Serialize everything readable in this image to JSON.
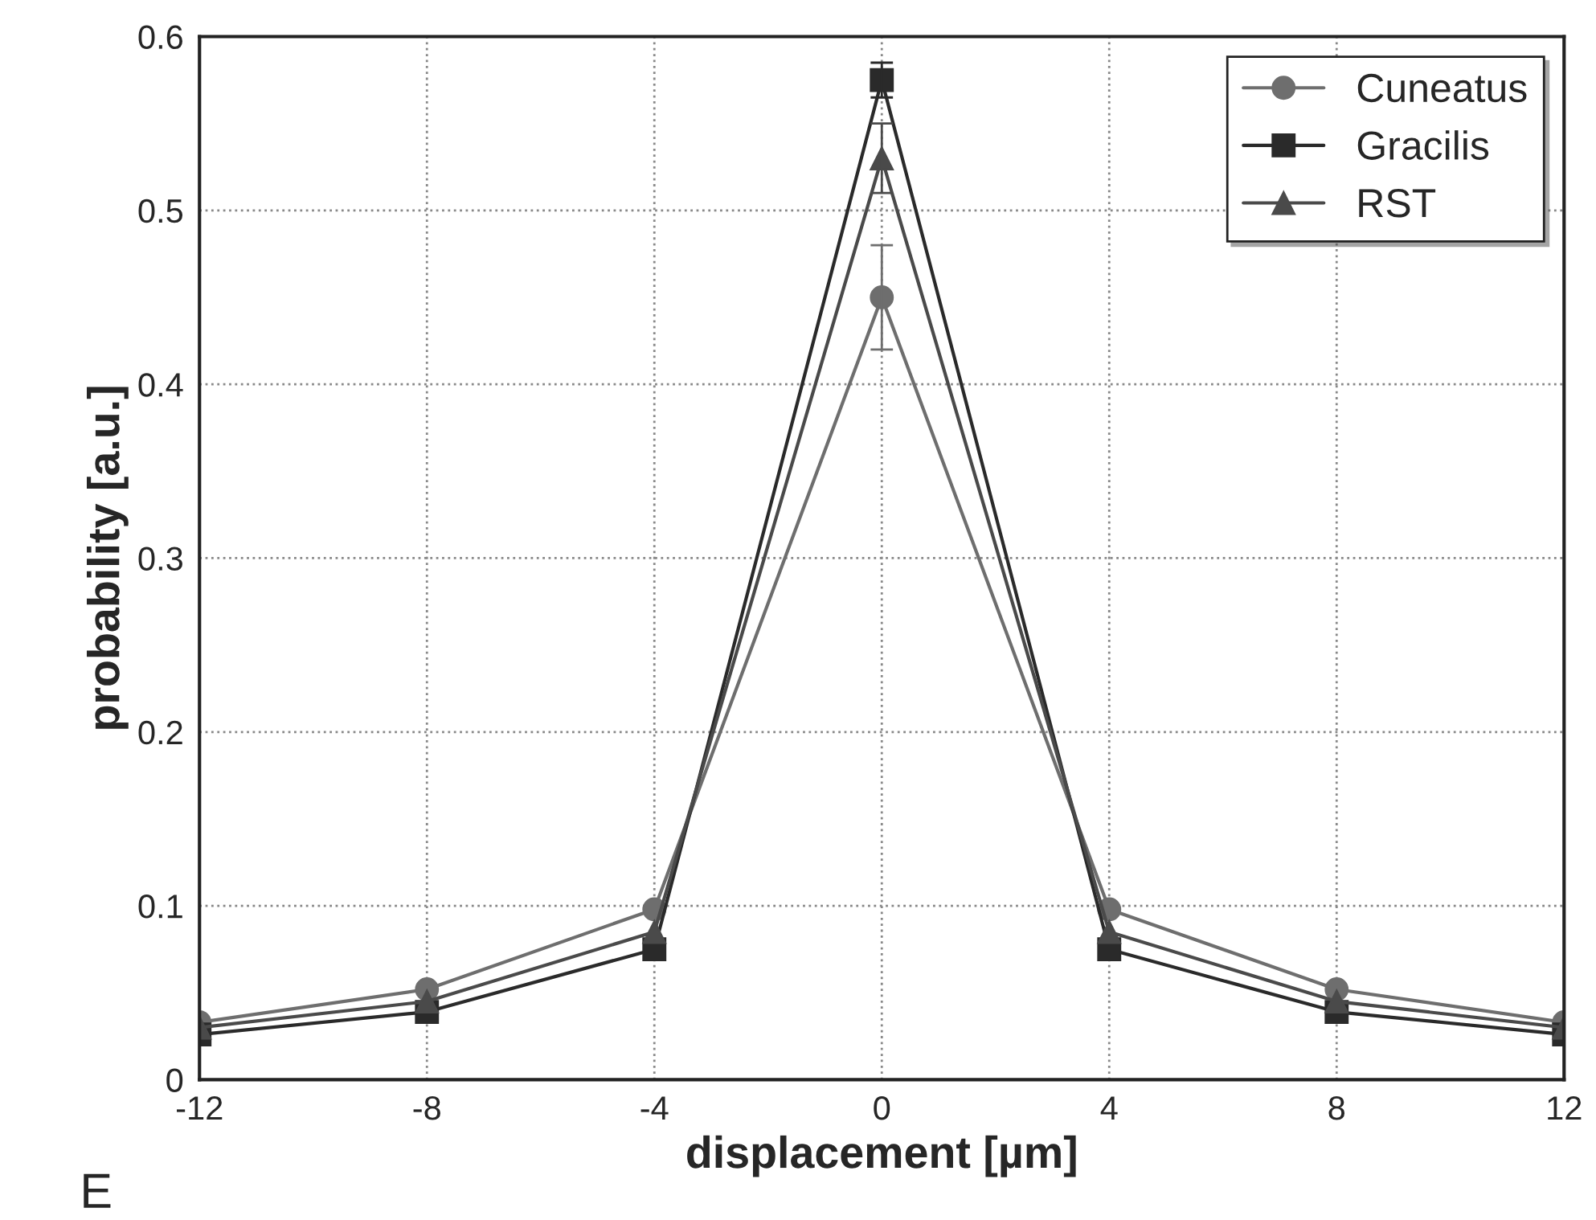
{
  "chart_data": {
    "type": "line",
    "xlabel": "displacement [µm]",
    "ylabel": "probability [a.u.]",
    "x": [
      -12,
      -8,
      -4,
      0,
      4,
      8,
      12
    ],
    "series": [
      {
        "name": "Cuneatus",
        "color": "#6e6e6e",
        "marker": "circle",
        "values": [
          0.033,
          0.052,
          0.098,
          0.45,
          0.098,
          0.052,
          0.033
        ],
        "errors": [
          null,
          null,
          null,
          0.03,
          null,
          null,
          null
        ]
      },
      {
        "name": "Gracilis",
        "color": "#2a2a2a",
        "marker": "square",
        "values": [
          0.026,
          0.039,
          0.075,
          0.575,
          0.075,
          0.039,
          0.026
        ],
        "errors": [
          null,
          null,
          null,
          0.01,
          null,
          null,
          null
        ]
      },
      {
        "name": "RST",
        "color": "#4a4a4a",
        "marker": "triangle",
        "values": [
          0.03,
          0.045,
          0.085,
          0.53,
          0.085,
          0.045,
          0.03
        ],
        "errors": [
          null,
          null,
          null,
          0.02,
          null,
          null,
          null
        ]
      }
    ],
    "xlim": [
      -12,
      12
    ],
    "xticks": [
      -12,
      -8,
      -4,
      0,
      4,
      8,
      12
    ],
    "ylim": [
      0,
      0.6
    ],
    "yticks": [
      0,
      0.1,
      0.2,
      0.3,
      0.4,
      0.5,
      0.6
    ],
    "grid": true,
    "legend": "top right",
    "annotations": [
      "E"
    ]
  }
}
